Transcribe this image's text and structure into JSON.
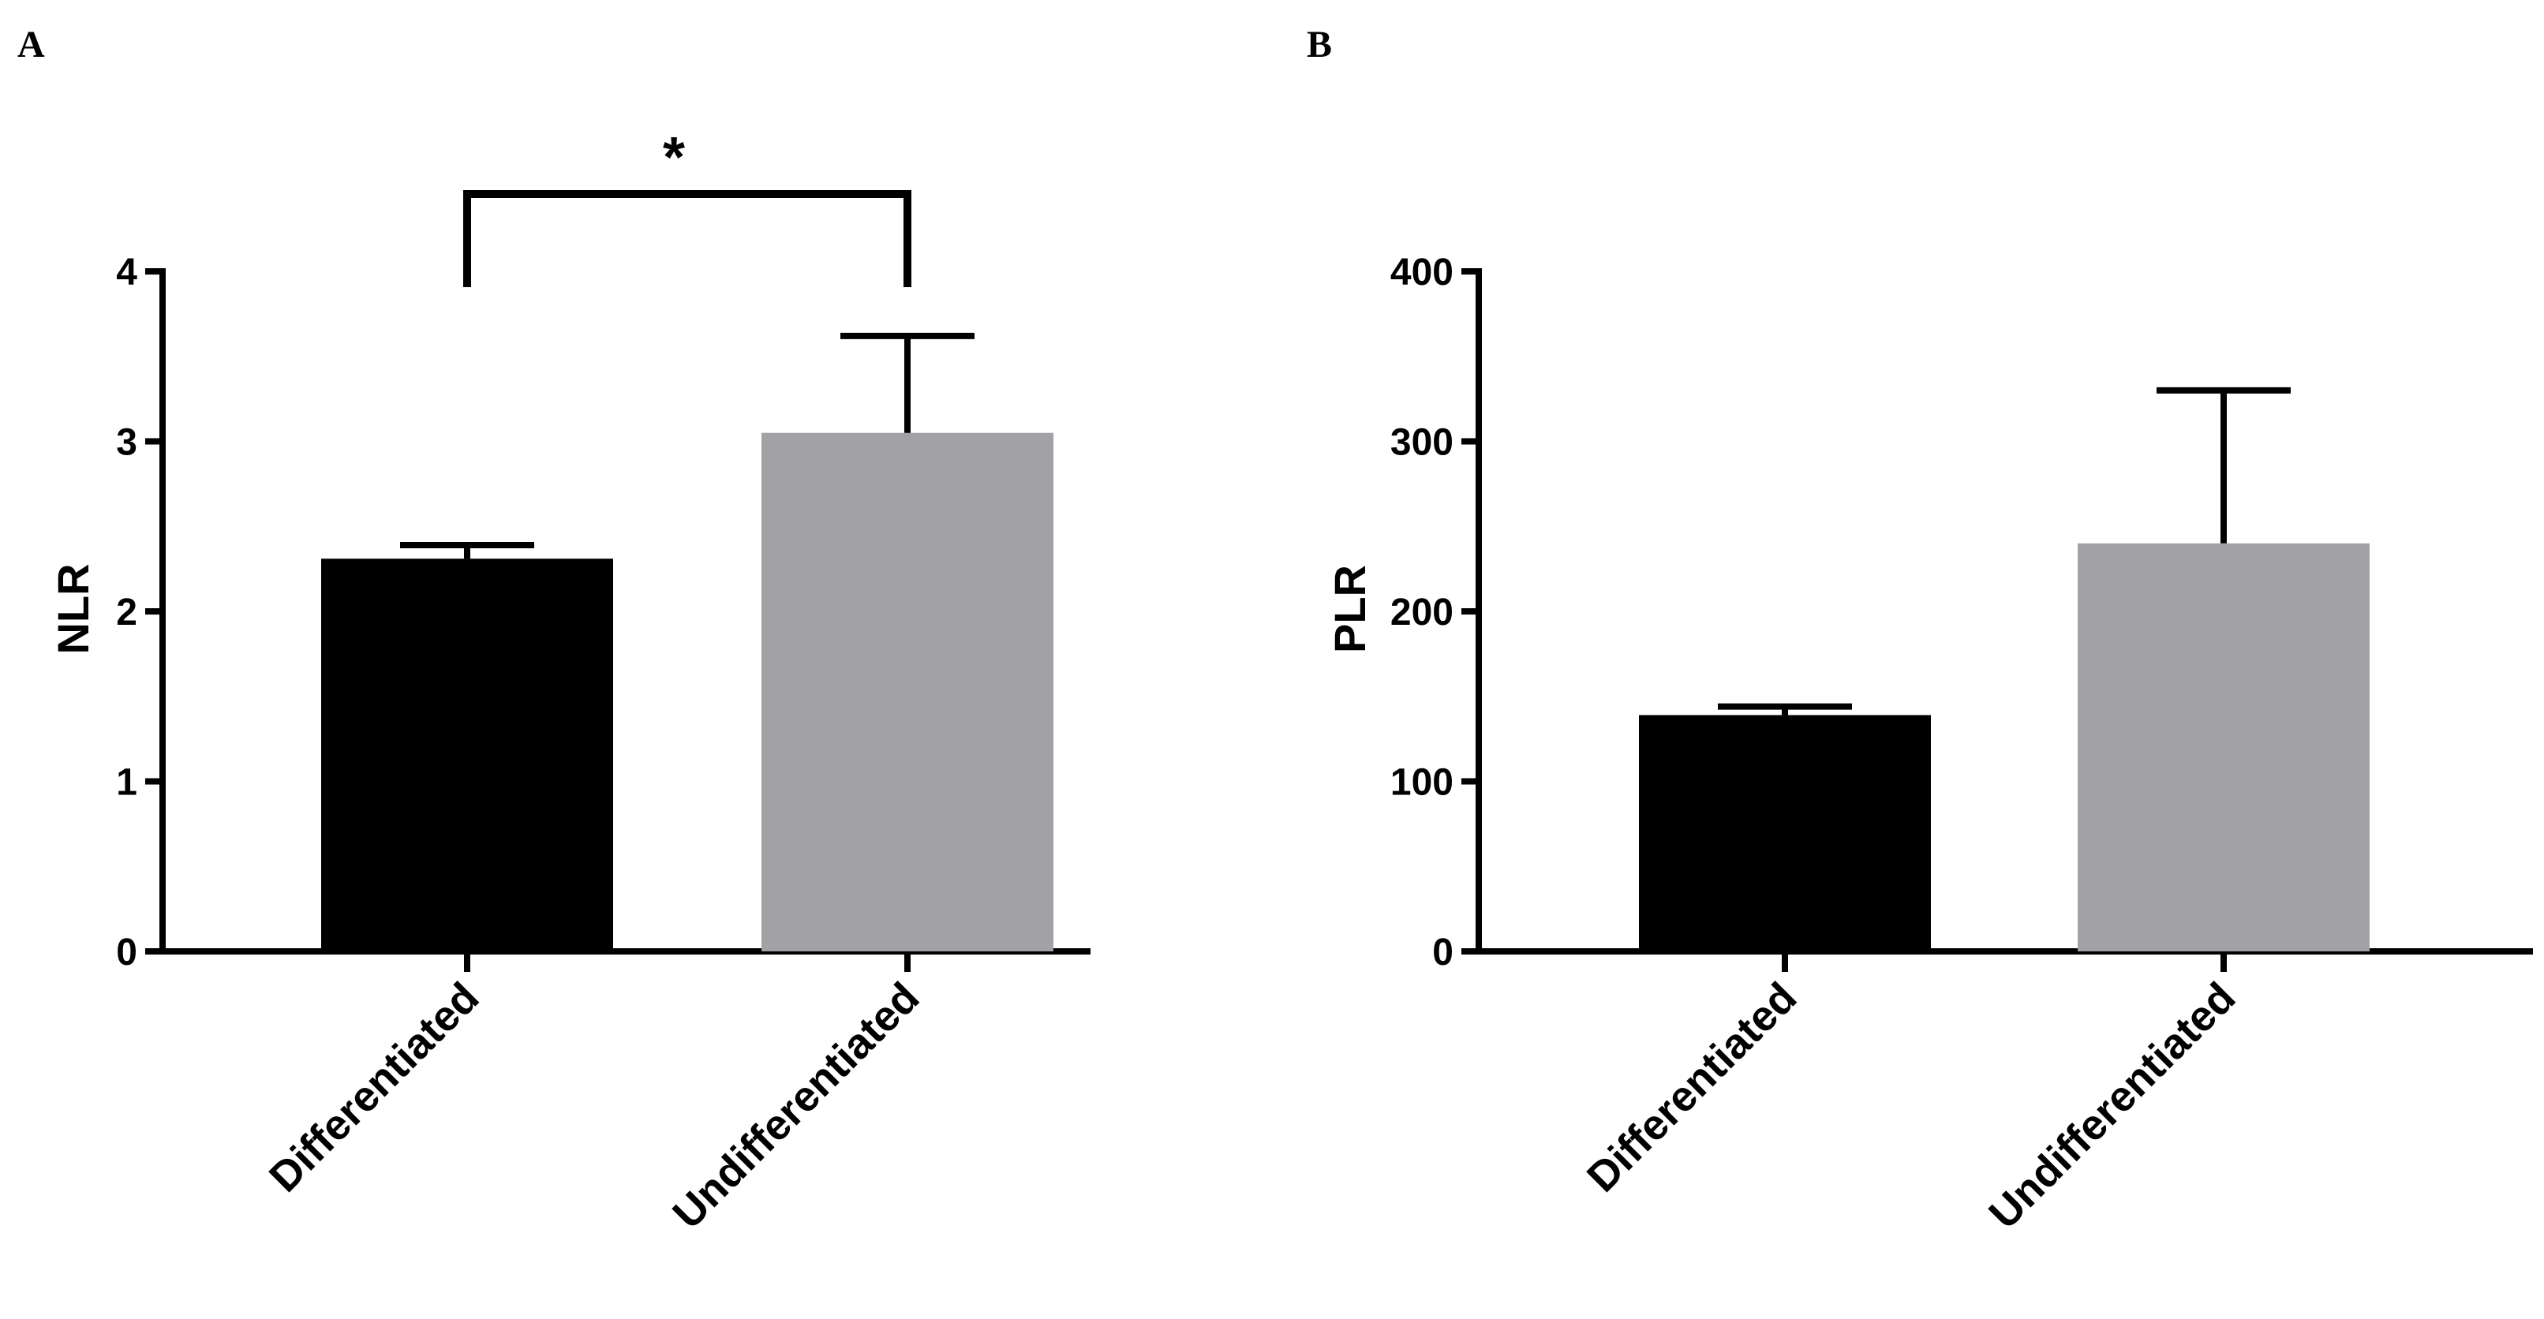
{
  "chart_data": [
    {
      "panel": "A",
      "type": "bar",
      "categories": [
        "Differentiated",
        "Undifferentiated"
      ],
      "values": [
        2.31,
        3.05
      ],
      "error_upper": [
        2.39,
        3.62
      ],
      "colors": [
        "#000000",
        "#a2a1a5"
      ],
      "ylabel": "NLR",
      "ylim": [
        0,
        4
      ],
      "yticks": [
        "0",
        "1",
        "2",
        "3",
        "4"
      ],
      "significance": {
        "between": [
          0,
          1
        ],
        "label": "*"
      },
      "grid": false
    },
    {
      "panel": "B",
      "type": "bar",
      "categories": [
        "Differentiated",
        "Undifferentiated"
      ],
      "values": [
        139,
        240
      ],
      "error_upper": [
        144,
        330
      ],
      "colors": [
        "#000000",
        "#a2a1a5"
      ],
      "ylabel": "PLR",
      "ylim": [
        0,
        400
      ],
      "yticks": [
        "0",
        "100",
        "200",
        "300",
        "400"
      ],
      "grid": false
    }
  ]
}
